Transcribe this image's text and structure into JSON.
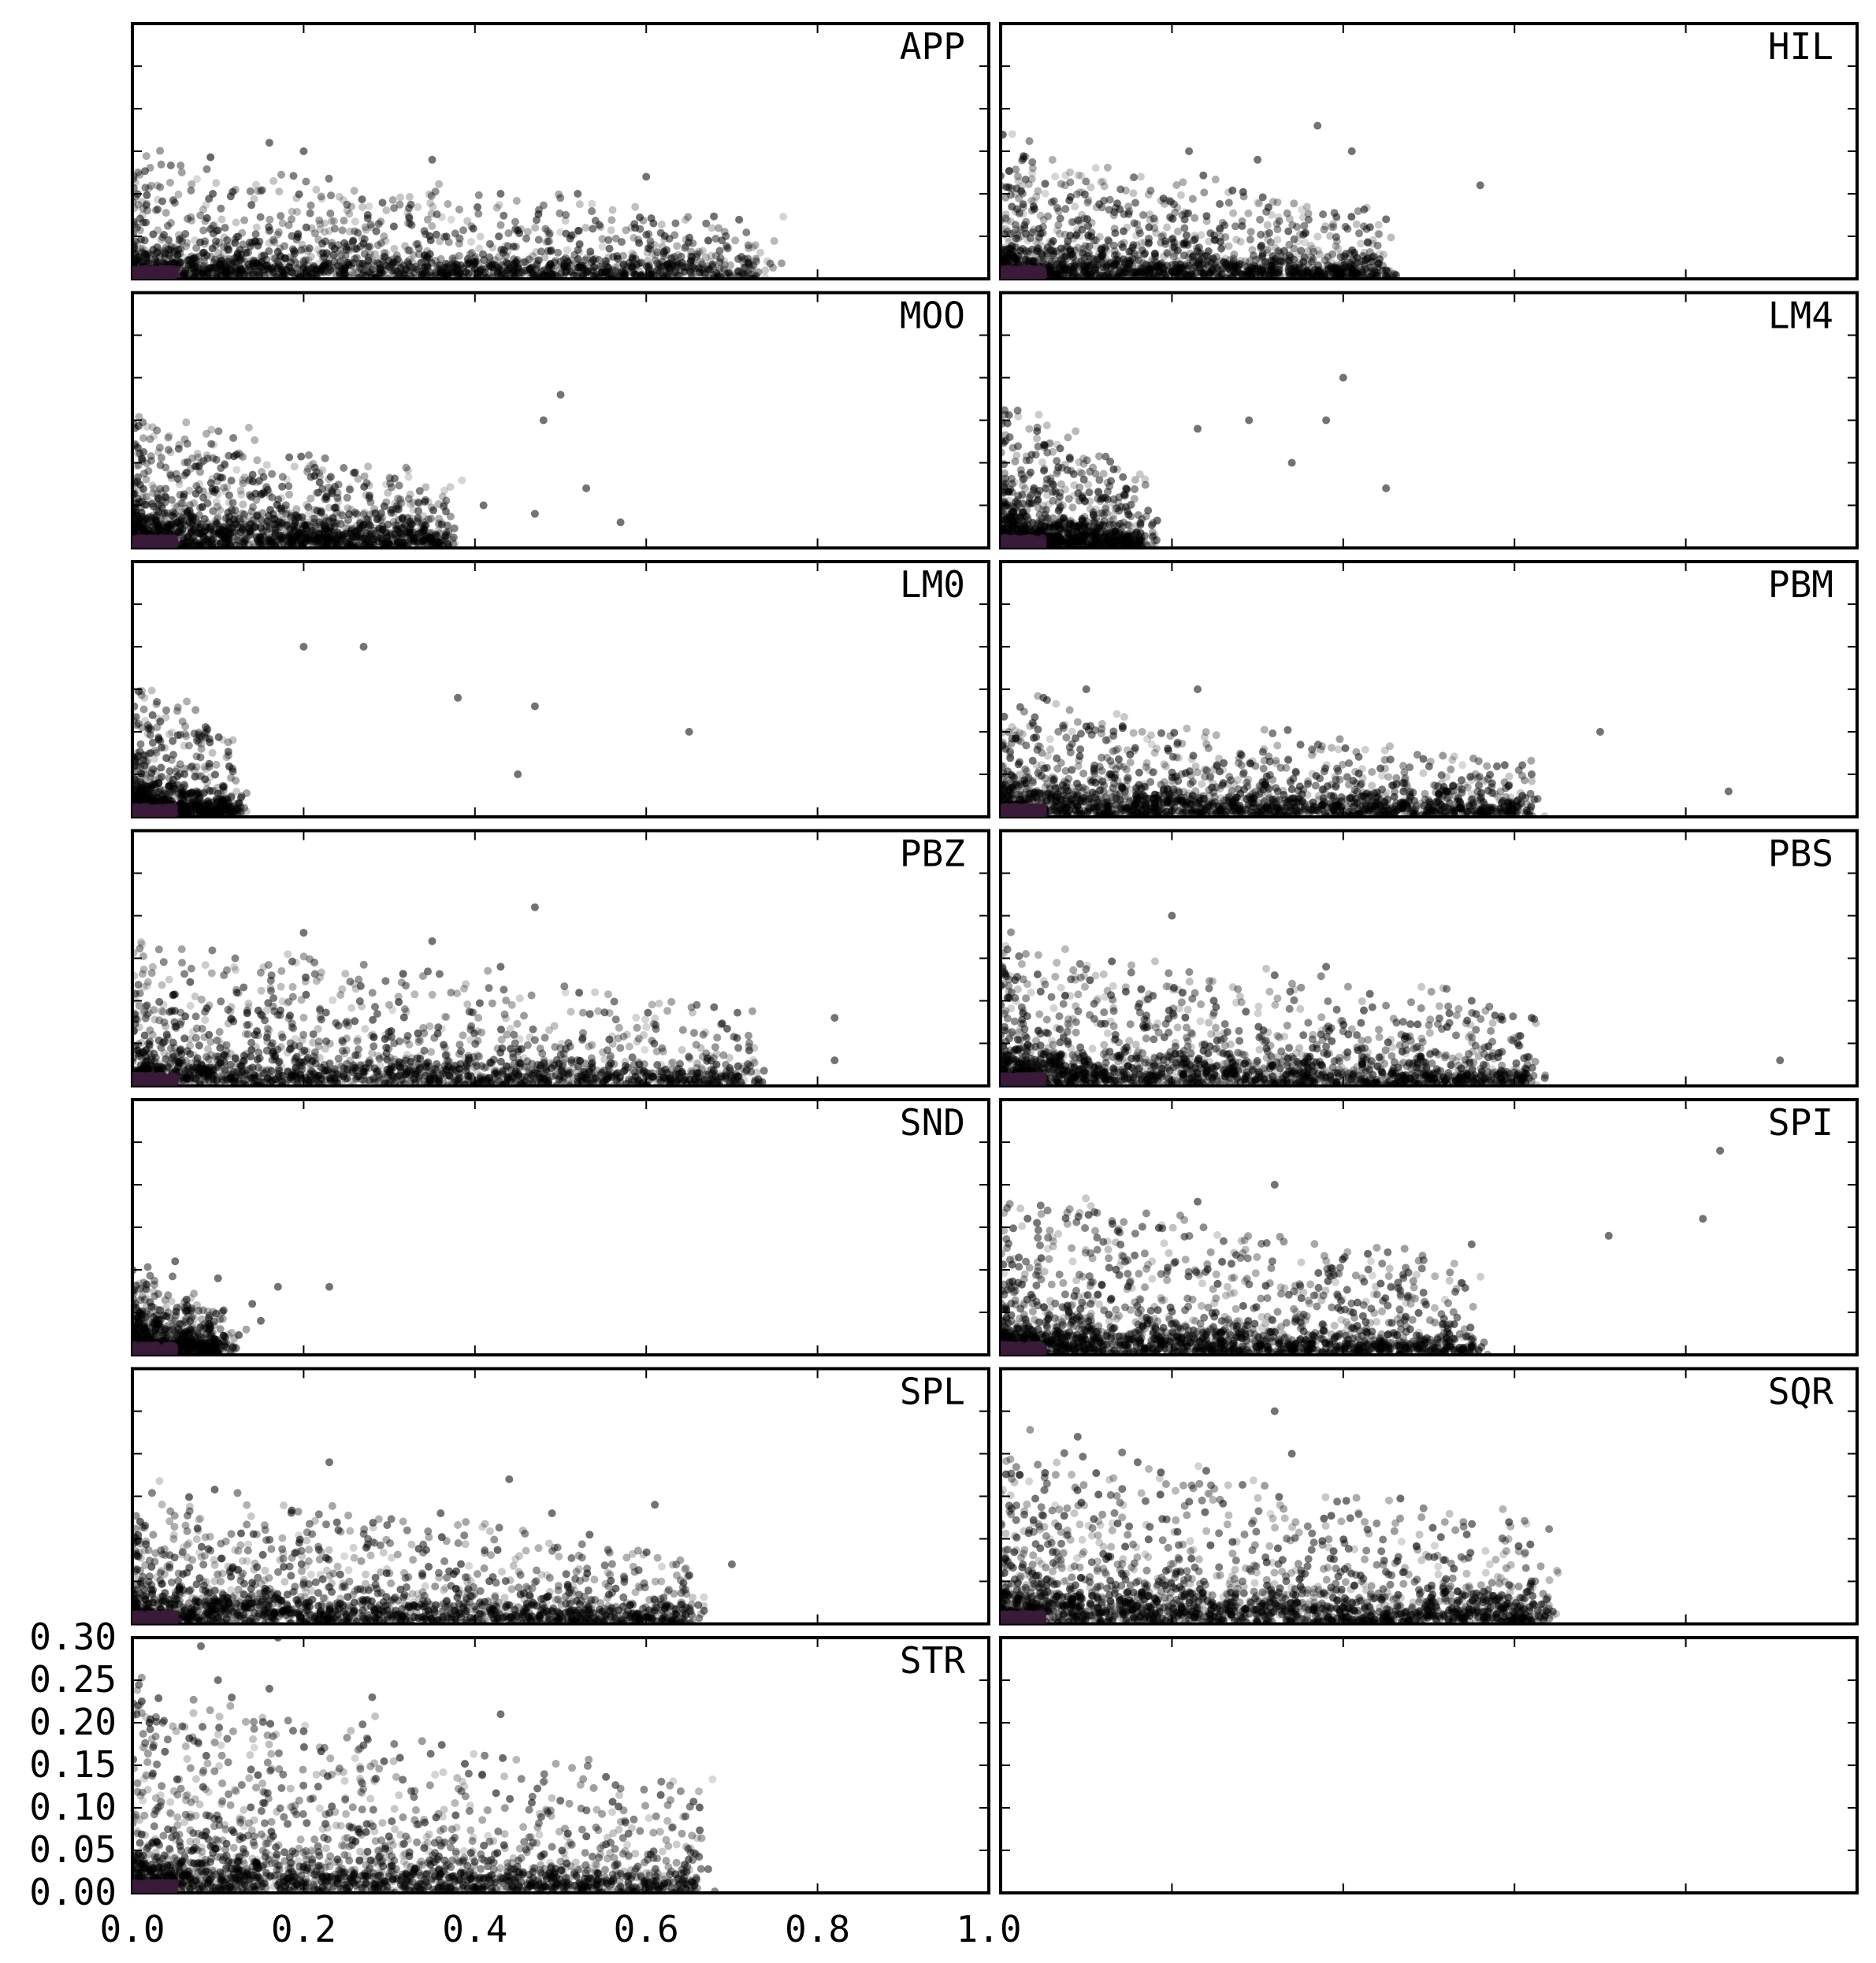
{
  "chart_data": {
    "type": "scatter",
    "title": "",
    "xlabel": "",
    "ylabel": "",
    "xlim": [
      0.0,
      1.0
    ],
    "ylim": [
      0.0,
      0.3
    ],
    "x_tick_labels": [
      "0.0",
      "0.2",
      "0.4",
      "0.6",
      "0.8",
      "1.0"
    ],
    "y_tick_labels": [
      "0.30",
      "0.25",
      "0.20",
      "0.15",
      "0.10",
      "0.05",
      "0.00"
    ],
    "grid": false,
    "layout": "7 rows x 2 columns, shared axes",
    "colors": {
      "point": "#000000",
      "core": "#3a1a3a",
      "frame": "#000000"
    },
    "panels": [
      {
        "label": "APP",
        "x_max": 0.74,
        "y_typ": 0.03,
        "y_max": 0.16,
        "n": 1800,
        "outliers": [
          [
            0.16,
            0.16
          ],
          [
            0.2,
            0.15
          ],
          [
            0.35,
            0.14
          ],
          [
            0.6,
            0.12
          ],
          [
            0.52,
            0.1
          ],
          [
            0.43,
            0.1
          ]
        ]
      },
      {
        "label": "HIL",
        "x_max": 0.45,
        "y_typ": 0.03,
        "y_max": 0.18,
        "n": 1500,
        "outliers": [
          [
            0.37,
            0.18
          ],
          [
            0.41,
            0.15
          ],
          [
            0.56,
            0.11
          ],
          [
            0.22,
            0.15
          ],
          [
            0.3,
            0.14
          ],
          [
            0.45,
            0.07
          ]
        ]
      },
      {
        "label": "MOO",
        "x_max": 0.37,
        "y_typ": 0.03,
        "y_max": 0.18,
        "n": 1500,
        "outliers": [
          [
            0.5,
            0.18
          ],
          [
            0.48,
            0.15
          ],
          [
            0.53,
            0.07
          ],
          [
            0.47,
            0.04
          ],
          [
            0.57,
            0.03
          ],
          [
            0.41,
            0.05
          ]
        ]
      },
      {
        "label": "LM4",
        "x_max": 0.17,
        "y_typ": 0.03,
        "y_max": 0.2,
        "n": 1000,
        "outliers": [
          [
            0.4,
            0.2
          ],
          [
            0.38,
            0.15
          ],
          [
            0.29,
            0.15
          ],
          [
            0.45,
            0.07
          ],
          [
            0.23,
            0.14
          ],
          [
            0.34,
            0.1
          ]
        ]
      },
      {
        "label": "LM0",
        "x_max": 0.12,
        "y_typ": 0.03,
        "y_max": 0.2,
        "n": 800,
        "outliers": [
          [
            0.2,
            0.2
          ],
          [
            0.27,
            0.2
          ],
          [
            0.65,
            0.1
          ],
          [
            0.47,
            0.13
          ],
          [
            0.38,
            0.14
          ],
          [
            0.45,
            0.05
          ]
        ]
      },
      {
        "label": "PBM",
        "x_max": 0.62,
        "y_typ": 0.03,
        "y_max": 0.15,
        "n": 1800,
        "outliers": [
          [
            0.1,
            0.15
          ],
          [
            0.23,
            0.15
          ],
          [
            0.85,
            0.03
          ],
          [
            0.7,
            0.1
          ],
          [
            0.62,
            0.05
          ],
          [
            0.05,
            0.14
          ]
        ]
      },
      {
        "label": "PBZ",
        "x_max": 0.72,
        "y_typ": 0.03,
        "y_max": 0.21,
        "n": 1800,
        "outliers": [
          [
            0.47,
            0.21
          ],
          [
            0.82,
            0.08
          ],
          [
            0.82,
            0.03
          ],
          [
            0.43,
            0.14
          ],
          [
            0.2,
            0.18
          ],
          [
            0.35,
            0.17
          ]
        ]
      },
      {
        "label": "PBS",
        "x_max": 0.62,
        "y_typ": 0.03,
        "y_max": 0.2,
        "n": 1800,
        "outliers": [
          [
            0.2,
            0.2
          ],
          [
            0.91,
            0.03
          ],
          [
            0.62,
            0.08
          ],
          [
            0.55,
            0.1
          ],
          [
            0.38,
            0.14
          ],
          [
            0.32,
            0.13
          ]
        ]
      },
      {
        "label": "SND",
        "x_max": 0.11,
        "y_typ": 0.03,
        "y_max": 0.11,
        "n": 700,
        "outliers": [
          [
            0.23,
            0.08
          ],
          [
            0.17,
            0.08
          ],
          [
            0.15,
            0.04
          ],
          [
            0.05,
            0.11
          ],
          [
            0.1,
            0.09
          ],
          [
            0.14,
            0.06
          ]
        ]
      },
      {
        "label": "SPI",
        "x_max": 0.55,
        "y_typ": 0.03,
        "y_max": 0.24,
        "n": 1800,
        "outliers": [
          [
            0.84,
            0.24
          ],
          [
            0.82,
            0.16
          ],
          [
            0.71,
            0.14
          ],
          [
            0.32,
            0.2
          ],
          [
            0.23,
            0.18
          ],
          [
            0.55,
            0.13
          ]
        ]
      },
      {
        "label": "SPL",
        "x_max": 0.66,
        "y_typ": 0.03,
        "y_max": 0.19,
        "n": 1800,
        "outliers": [
          [
            0.23,
            0.19
          ],
          [
            0.44,
            0.17
          ],
          [
            0.61,
            0.14
          ],
          [
            0.7,
            0.07
          ],
          [
            0.36,
            0.13
          ],
          [
            0.49,
            0.13
          ]
        ]
      },
      {
        "label": "SQR",
        "x_max": 0.64,
        "y_typ": 0.04,
        "y_max": 0.25,
        "n": 2000,
        "outliers": [
          [
            0.32,
            0.25
          ],
          [
            0.09,
            0.22
          ],
          [
            0.34,
            0.2
          ],
          [
            0.16,
            0.19
          ],
          [
            0.24,
            0.18
          ],
          [
            0.62,
            0.05
          ]
        ]
      },
      {
        "label": "STR",
        "x_max": 0.66,
        "y_typ": 0.04,
        "y_max": 0.3,
        "n": 2000,
        "outliers": [
          [
            0.17,
            0.3
          ],
          [
            0.08,
            0.29
          ],
          [
            0.1,
            0.25
          ],
          [
            0.16,
            0.24
          ],
          [
            0.02,
            0.2
          ],
          [
            0.28,
            0.23
          ],
          [
            0.43,
            0.21
          ],
          [
            0.2,
            0.19
          ]
        ]
      },
      {
        "label": "",
        "x_max": 0,
        "y_typ": 0,
        "y_max": 0,
        "n": 0,
        "outliers": []
      }
    ]
  }
}
